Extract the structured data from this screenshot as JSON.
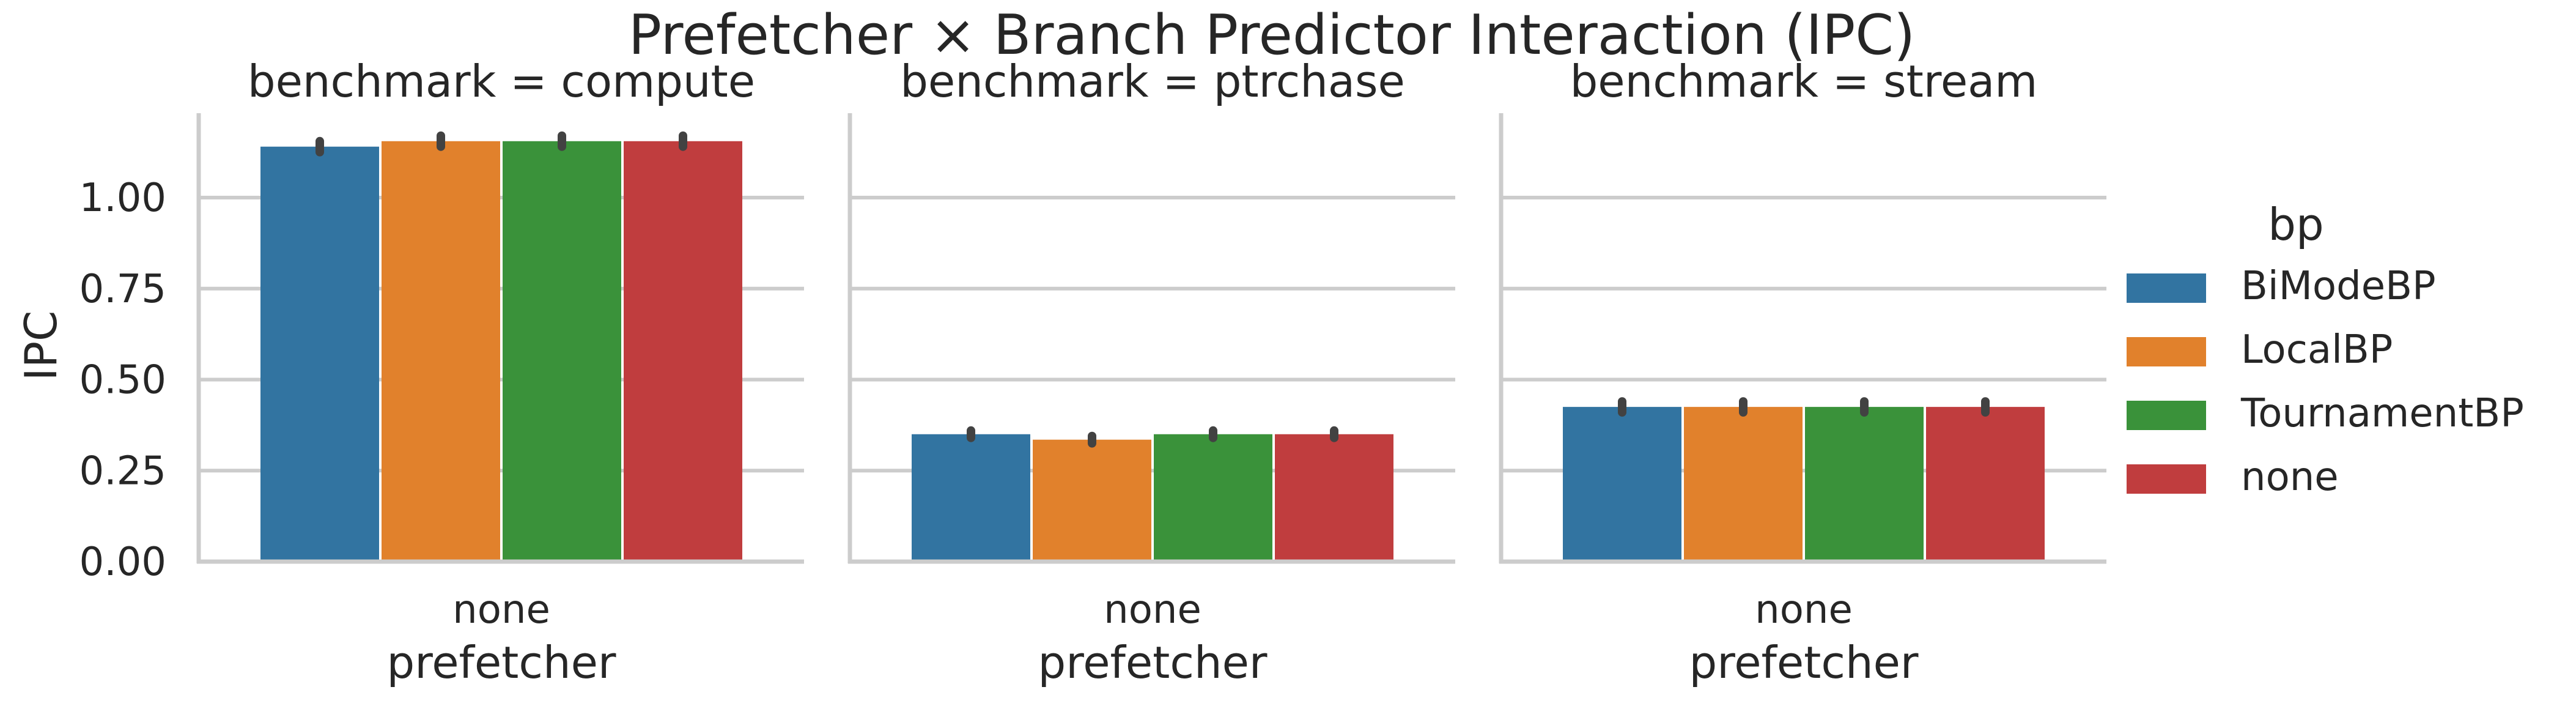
{
  "chart_data": {
    "type": "bar",
    "title": "Prefetcher × Branch Predictor Interaction (IPC)",
    "ylabel": "IPC",
    "xlabel": "prefetcher",
    "ylim": [
      0,
      1.2
    ],
    "yticks": [
      "0.00",
      "0.25",
      "0.50",
      "0.75",
      "1.00"
    ],
    "grid": "horizontal",
    "legend": {
      "title": "bp",
      "placement": "right",
      "entries": [
        "BiModeBP",
        "LocalBP",
        "TournamentBP",
        "none"
      ]
    },
    "colors": {
      "BiModeBP": "#3274a1",
      "LocalBP": "#e1812c",
      "TournamentBP": "#3a923a",
      "none": "#c03d3e",
      "grid": "#cccccc",
      "text": "#262626"
    },
    "facets": [
      {
        "title": "benchmark = compute",
        "categories": [
          "none"
        ],
        "series": [
          {
            "name": "BiModeBP",
            "values": [
              1.14
            ],
            "error": [
              0.015
            ]
          },
          {
            "name": "LocalBP",
            "values": [
              1.155
            ],
            "error": [
              0.015
            ]
          },
          {
            "name": "TournamentBP",
            "values": [
              1.155
            ],
            "error": [
              0.015
            ]
          },
          {
            "name": "none",
            "values": [
              1.155
            ],
            "error": [
              0.015
            ]
          }
        ]
      },
      {
        "title": "benchmark = ptrchase",
        "categories": [
          "none"
        ],
        "series": [
          {
            "name": "BiModeBP",
            "values": [
              0.35
            ],
            "error": [
              0.01
            ]
          },
          {
            "name": "LocalBP",
            "values": [
              0.335
            ],
            "error": [
              0.01
            ]
          },
          {
            "name": "TournamentBP",
            "values": [
              0.35
            ],
            "error": [
              0.01
            ]
          },
          {
            "name": "none",
            "values": [
              0.35
            ],
            "error": [
              0.01
            ]
          }
        ]
      },
      {
        "title": "benchmark = stream",
        "categories": [
          "none"
        ],
        "series": [
          {
            "name": "BiModeBP",
            "values": [
              0.425
            ],
            "error": [
              0.015
            ]
          },
          {
            "name": "LocalBP",
            "values": [
              0.425
            ],
            "error": [
              0.015
            ]
          },
          {
            "name": "TournamentBP",
            "values": [
              0.425
            ],
            "error": [
              0.015
            ]
          },
          {
            "name": "none",
            "values": [
              0.425
            ],
            "error": [
              0.015
            ]
          }
        ]
      }
    ]
  }
}
